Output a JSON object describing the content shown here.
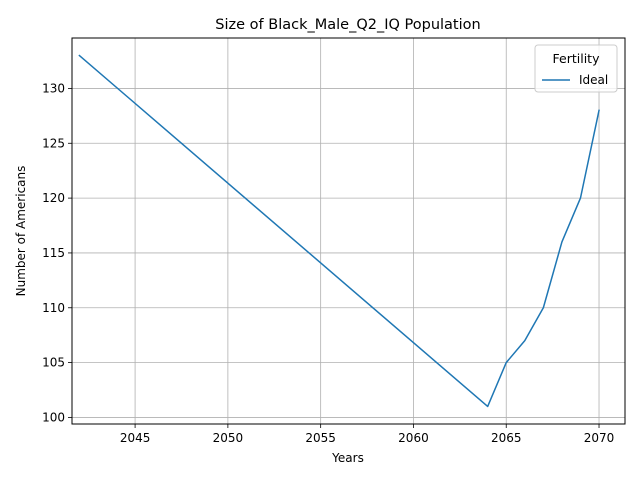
{
  "chart_data": {
    "type": "line",
    "title": "Size of Black_Male_Q2_IQ Population",
    "xlabel": "Years",
    "ylabel": "Number of Americans",
    "xlim": [
      2041.6,
      2071.4
    ],
    "ylim": [
      99.4,
      134.6
    ],
    "xticks": [
      2045,
      2050,
      2055,
      2060,
      2065,
      2070
    ],
    "yticks": [
      100,
      105,
      110,
      115,
      120,
      125,
      130
    ],
    "grid": true,
    "legend": {
      "title": "Fertility",
      "placement": "top-right"
    },
    "series": [
      {
        "name": "Ideal",
        "color": "#1f77b4",
        "x": [
          2042,
          2064,
          2065,
          2066,
          2067,
          2068,
          2069,
          2070
        ],
        "y": [
          133,
          101,
          105,
          107,
          110,
          116,
          120,
          128
        ]
      }
    ]
  }
}
